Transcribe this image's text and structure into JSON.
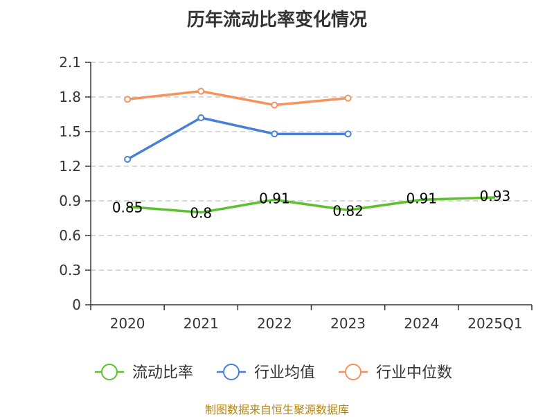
{
  "title": "历年流动比率变化情况",
  "source": "制图数据来自恒生聚源数据库",
  "chart_data": {
    "type": "line",
    "categories": [
      "2020",
      "2021",
      "2022",
      "2023",
      "2024",
      "2025Q1"
    ],
    "yticks": [
      "0",
      "0.3",
      "0.6",
      "0.9",
      "1.2",
      "1.5",
      "1.8",
      "2.1"
    ],
    "ylim": [
      0,
      2.1
    ],
    "grid": true,
    "legend_position": "bottom",
    "series": [
      {
        "name": "流动比率",
        "color": "#5cc12c",
        "values": [
          0.85,
          0.8,
          0.91,
          0.82,
          0.91,
          0.93
        ],
        "labels": [
          "0.85",
          "0.8",
          "0.91",
          "0.82",
          "0.91",
          "0.93"
        ]
      },
      {
        "name": "行业均值",
        "color": "#4a7fd8",
        "values": [
          1.26,
          1.62,
          1.48,
          1.48,
          null,
          null
        ]
      },
      {
        "name": "行业中位数",
        "color": "#f5925e",
        "values": [
          1.78,
          1.85,
          1.73,
          1.79,
          null,
          null
        ]
      }
    ]
  }
}
